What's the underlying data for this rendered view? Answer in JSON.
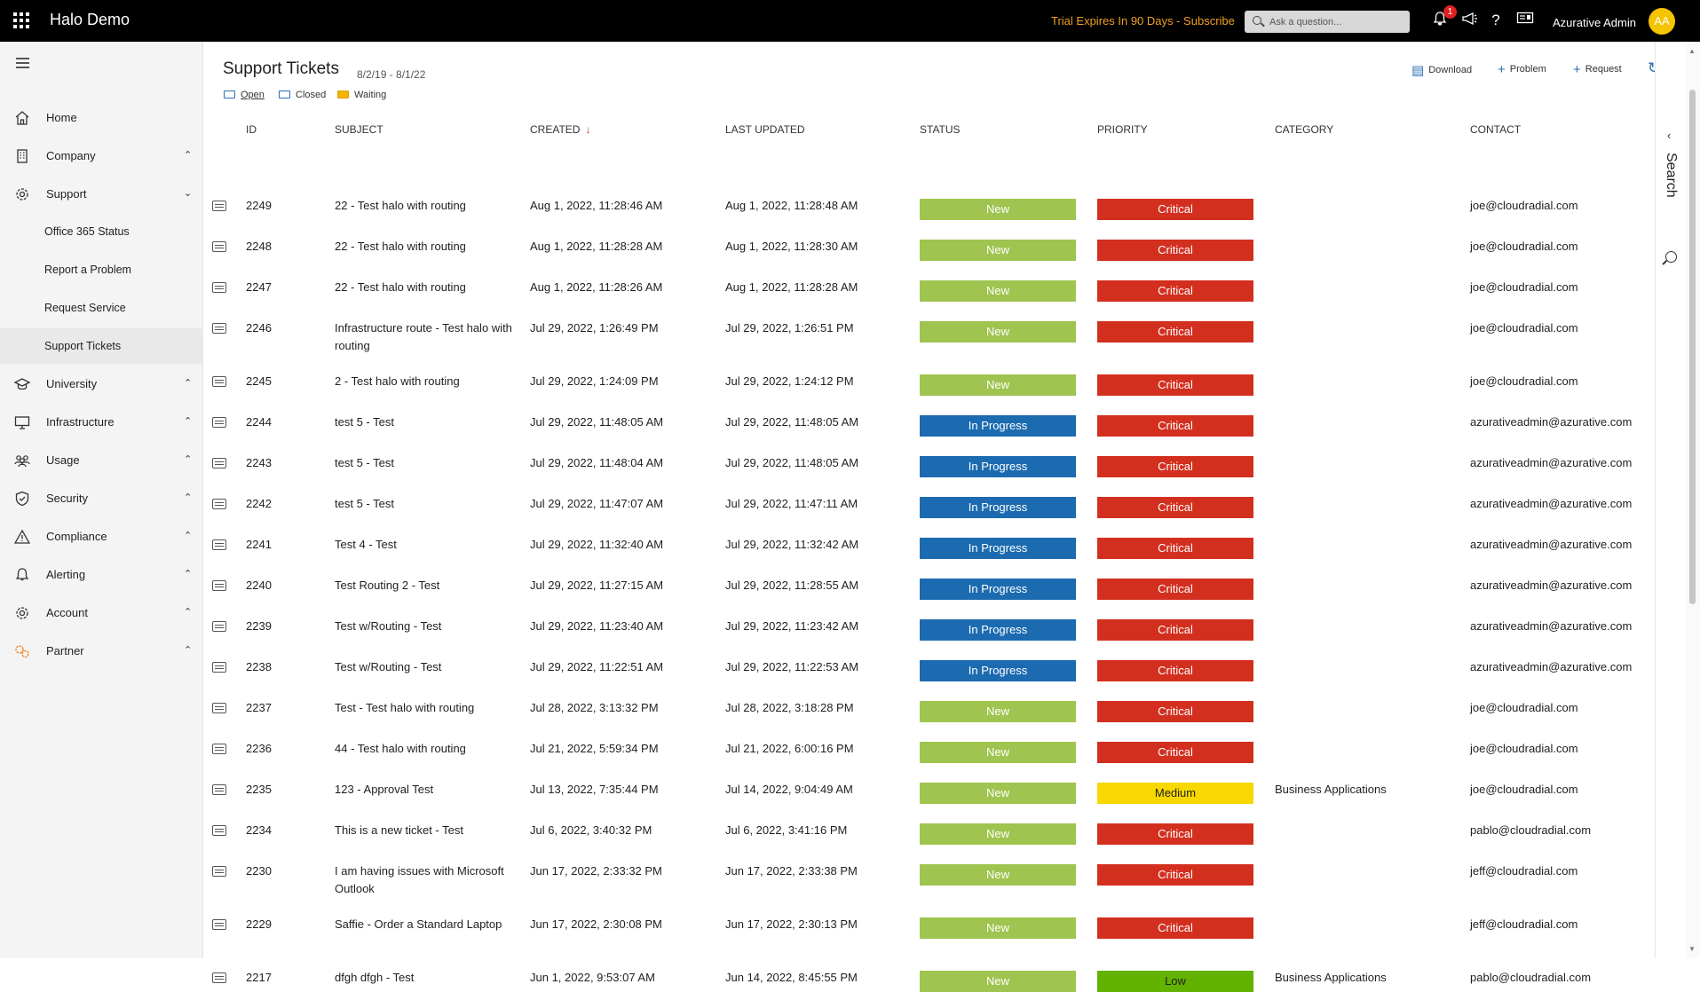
{
  "topbar": {
    "app_title": "Halo Demo",
    "trial_text": "Trial Expires In 90 Days - Subscribe",
    "search_placeholder": "Ask a question...",
    "notification_count": "1",
    "help_glyph": "?",
    "user_name": "Azurative Admin",
    "avatar_initials": "AA"
  },
  "sidebar": {
    "items": [
      {
        "label": "Home",
        "icon": "home-icon"
      },
      {
        "label": "Company",
        "icon": "building-icon",
        "chevron": "up"
      },
      {
        "label": "Support",
        "icon": "gear-icon",
        "chevron": "down"
      },
      {
        "label": "University",
        "icon": "graduation-cap-icon",
        "chevron": "up"
      },
      {
        "label": "Infrastructure",
        "icon": "monitor-icon",
        "chevron": "up"
      },
      {
        "label": "Usage",
        "icon": "people-icon",
        "chevron": "up"
      },
      {
        "label": "Security",
        "icon": "shield-icon",
        "chevron": "up"
      },
      {
        "label": "Compliance",
        "icon": "warning-icon",
        "chevron": "up"
      },
      {
        "label": "Alerting",
        "icon": "bell-icon",
        "chevron": "up"
      },
      {
        "label": "Account",
        "icon": "gear-icon",
        "chevron": "up"
      },
      {
        "label": "Partner",
        "icon": "partner-gears-icon",
        "chevron": "up"
      }
    ],
    "support_subitems": [
      {
        "label": "Office 365 Status"
      },
      {
        "label": "Report a Problem"
      },
      {
        "label": "Request Service"
      },
      {
        "label": "Support Tickets"
      }
    ]
  },
  "page": {
    "title": "Support Tickets",
    "date_range": "8/2/19 - 8/1/22",
    "filters": [
      "Open",
      "Closed",
      "Waiting"
    ],
    "actions": {
      "download": "Download",
      "problem": "Problem",
      "request": "Request"
    }
  },
  "table": {
    "headers": {
      "id": "ID",
      "subject": "SUBJECT",
      "created": "CREATED",
      "updated": "LAST UPDATED",
      "status": "STATUS",
      "priority": "PRIORITY",
      "category": "CATEGORY",
      "contact": "CONTACT"
    },
    "status_colors": {
      "New": "#9fc44f",
      "In Progress": "#1c6bb0"
    },
    "priority_colors": {
      "Critical": "#d32f1f",
      "Medium": "#f7d800",
      "Low": "#62b300"
    },
    "rows": [
      {
        "id": "2249",
        "subject": "22 - Test halo with routing",
        "created": "Aug 1, 2022, 11:28:46 AM",
        "updated": "Aug 1, 2022, 11:28:48 AM",
        "status": "New",
        "priority": "Critical",
        "category": "",
        "contact": "joe@cloudradial.com"
      },
      {
        "id": "2248",
        "subject": "22 - Test halo with routing",
        "created": "Aug 1, 2022, 11:28:28 AM",
        "updated": "Aug 1, 2022, 11:28:30 AM",
        "status": "New",
        "priority": "Critical",
        "category": "",
        "contact": "joe@cloudradial.com"
      },
      {
        "id": "2247",
        "subject": "22 - Test halo with routing",
        "created": "Aug 1, 2022, 11:28:26 AM",
        "updated": "Aug 1, 2022, 11:28:28 AM",
        "status": "New",
        "priority": "Critical",
        "category": "",
        "contact": "joe@cloudradial.com"
      },
      {
        "id": "2246",
        "subject": "Infrastructure route - Test halo with routing",
        "created": "Jul 29, 2022, 1:26:49 PM",
        "updated": "Jul 29, 2022, 1:26:51 PM",
        "status": "New",
        "priority": "Critical",
        "category": "",
        "contact": "joe@cloudradial.com"
      },
      {
        "id": "2245",
        "subject": "2 - Test halo with routing",
        "created": "Jul 29, 2022, 1:24:09 PM",
        "updated": "Jul 29, 2022, 1:24:12 PM",
        "status": "New",
        "priority": "Critical",
        "category": "",
        "contact": "joe@cloudradial.com"
      },
      {
        "id": "2244",
        "subject": "test 5 - Test",
        "created": "Jul 29, 2022, 11:48:05 AM",
        "updated": "Jul 29, 2022, 11:48:05 AM",
        "status": "In Progress",
        "priority": "Critical",
        "category": "",
        "contact": "azurativeadmin@azurative.com"
      },
      {
        "id": "2243",
        "subject": "test 5 - Test",
        "created": "Jul 29, 2022, 11:48:04 AM",
        "updated": "Jul 29, 2022, 11:48:05 AM",
        "status": "In Progress",
        "priority": "Critical",
        "category": "",
        "contact": "azurativeadmin@azurative.com"
      },
      {
        "id": "2242",
        "subject": "test 5 - Test",
        "created": "Jul 29, 2022, 11:47:07 AM",
        "updated": "Jul 29, 2022, 11:47:11 AM",
        "status": "In Progress",
        "priority": "Critical",
        "category": "",
        "contact": "azurativeadmin@azurative.com"
      },
      {
        "id": "2241",
        "subject": "Test 4 - Test",
        "created": "Jul 29, 2022, 11:32:40 AM",
        "updated": "Jul 29, 2022, 11:32:42 AM",
        "status": "In Progress",
        "priority": "Critical",
        "category": "",
        "contact": "azurativeadmin@azurative.com"
      },
      {
        "id": "2240",
        "subject": "Test Routing 2 - Test",
        "created": "Jul 29, 2022, 11:27:15 AM",
        "updated": "Jul 29, 2022, 11:28:55 AM",
        "status": "In Progress",
        "priority": "Critical",
        "category": "",
        "contact": "azurativeadmin@azurative.com"
      },
      {
        "id": "2239",
        "subject": "Test w/Routing - Test",
        "created": "Jul 29, 2022, 11:23:40 AM",
        "updated": "Jul 29, 2022, 11:23:42 AM",
        "status": "In Progress",
        "priority": "Critical",
        "category": "",
        "contact": "azurativeadmin@azurative.com"
      },
      {
        "id": "2238",
        "subject": "Test w/Routing - Test",
        "created": "Jul 29, 2022, 11:22:51 AM",
        "updated": "Jul 29, 2022, 11:22:53 AM",
        "status": "In Progress",
        "priority": "Critical",
        "category": "",
        "contact": "azurativeadmin@azurative.com"
      },
      {
        "id": "2237",
        "subject": "Test - Test halo with routing",
        "created": "Jul 28, 2022, 3:13:32 PM",
        "updated": "Jul 28, 2022, 3:18:28 PM",
        "status": "New",
        "priority": "Critical",
        "category": "",
        "contact": "joe@cloudradial.com"
      },
      {
        "id": "2236",
        "subject": "44 - Test halo with routing",
        "created": "Jul 21, 2022, 5:59:34 PM",
        "updated": "Jul 21, 2022, 6:00:16 PM",
        "status": "New",
        "priority": "Critical",
        "category": "",
        "contact": "joe@cloudradial.com"
      },
      {
        "id": "2235",
        "subject": "123 - Approval Test",
        "created": "Jul 13, 2022, 7:35:44 PM",
        "updated": "Jul 14, 2022, 9:04:49 AM",
        "status": "New",
        "priority": "Medium",
        "category": "Business Applications",
        "contact": "joe@cloudradial.com"
      },
      {
        "id": "2234",
        "subject": "This is a new ticket - Test",
        "created": "Jul 6, 2022, 3:40:32 PM",
        "updated": "Jul 6, 2022, 3:41:16 PM",
        "status": "New",
        "priority": "Critical",
        "category": "",
        "contact": "pablo@cloudradial.com"
      },
      {
        "id": "2230",
        "subject": "I am having issues with Microsoft Outlook",
        "created": "Jun 17, 2022, 2:33:32 PM",
        "updated": "Jun 17, 2022, 2:33:38 PM",
        "status": "New",
        "priority": "Critical",
        "category": "",
        "contact": "jeff@cloudradial.com"
      },
      {
        "id": "2229",
        "subject": "Saffie - Order a Standard Laptop",
        "created": "Jun 17, 2022, 2:30:08 PM",
        "updated": "Jun 17, 2022, 2:30:13 PM",
        "status": "New",
        "priority": "Critical",
        "category": "",
        "contact": "jeff@cloudradial.com"
      },
      {
        "id": "2217",
        "subject": "dfgh dfgh - Test",
        "created": "Jun 1, 2022, 9:53:07 AM",
        "updated": "Jun 14, 2022, 8:45:55 PM",
        "status": "New",
        "priority": "Low",
        "category": "Business Applications",
        "contact": "pablo@cloudradial.com"
      }
    ]
  },
  "right_panel": {
    "label": "Search"
  }
}
